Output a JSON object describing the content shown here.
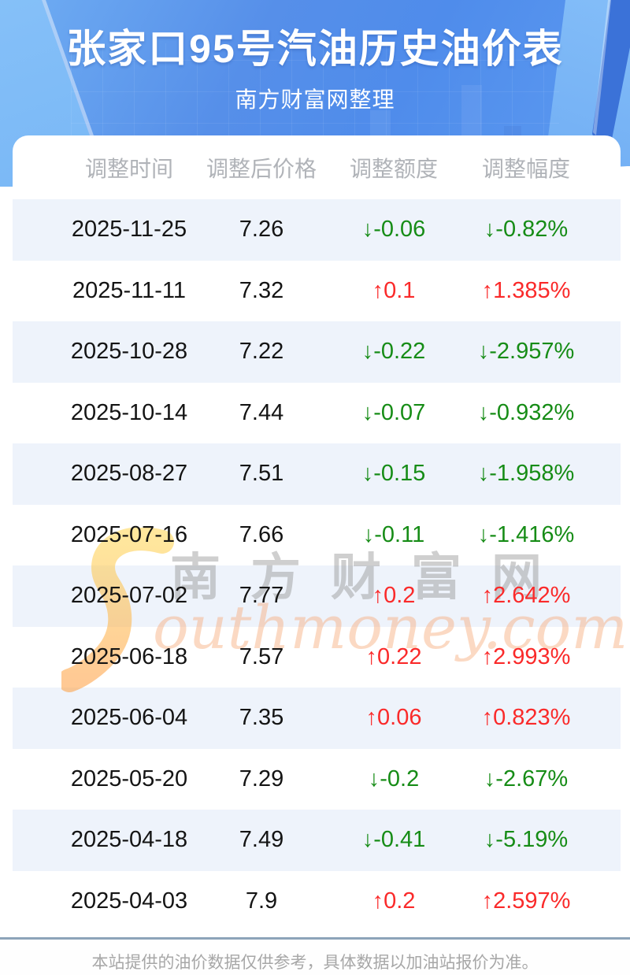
{
  "header": {
    "title": "张家口95号汽油历史油价表",
    "subtitle": "南方财富网整理"
  },
  "table": {
    "columns": [
      "调整时间",
      "调整后价格",
      "调整额度",
      "调整幅度"
    ],
    "arrows": {
      "up": "↑",
      "down": "↓"
    },
    "rows": [
      {
        "date": "2025-11-25",
        "price": "7.26",
        "change": "-0.06",
        "rate": "-0.82%",
        "trend": "down"
      },
      {
        "date": "2025-11-11",
        "price": "7.32",
        "change": "0.1",
        "rate": "1.385%",
        "trend": "up"
      },
      {
        "date": "2025-10-28",
        "price": "7.22",
        "change": "-0.22",
        "rate": "-2.957%",
        "trend": "down"
      },
      {
        "date": "2025-10-14",
        "price": "7.44",
        "change": "-0.07",
        "rate": "-0.932%",
        "trend": "down"
      },
      {
        "date": "2025-08-27",
        "price": "7.51",
        "change": "-0.15",
        "rate": "-1.958%",
        "trend": "down"
      },
      {
        "date": "2025-07-16",
        "price": "7.66",
        "change": "-0.11",
        "rate": "-1.416%",
        "trend": "down"
      },
      {
        "date": "2025-07-02",
        "price": "7.77",
        "change": "0.2",
        "rate": "2.642%",
        "trend": "up"
      },
      {
        "date": "2025-06-18",
        "price": "7.57",
        "change": "0.22",
        "rate": "2.993%",
        "trend": "up"
      },
      {
        "date": "2025-06-04",
        "price": "7.35",
        "change": "0.06",
        "rate": "0.823%",
        "trend": "up"
      },
      {
        "date": "2025-05-20",
        "price": "7.29",
        "change": "-0.2",
        "rate": "-2.67%",
        "trend": "down"
      },
      {
        "date": "2025-04-18",
        "price": "7.49",
        "change": "-0.41",
        "rate": "-5.19%",
        "trend": "down"
      },
      {
        "date": "2025-04-03",
        "price": "7.9",
        "change": "0.2",
        "rate": "2.597%",
        "trend": "up"
      }
    ]
  },
  "watermark": {
    "cn": "南方财富网",
    "en": "outhmoney.com"
  },
  "footer": {
    "note": "本站提供的油价数据仅供参考，具体数据以加油站报价为准。"
  },
  "colors": {
    "header_blue": "#5592e9",
    "header_light_blue": "#7db9f6",
    "header_dark_blue": "#3b72d8",
    "stripe": "#eef3fb",
    "up_red": "#fa2a2a",
    "down_green": "#168c16",
    "footer_rule": "#8da4b9",
    "muted_text": "#a7a7a7"
  },
  "chart_data": {
    "type": "table",
    "title": "张家口95号汽油历史油价表",
    "subtitle": "南方财富网整理",
    "columns": [
      "调整时间",
      "调整后价格",
      "调整额度",
      "调整幅度"
    ],
    "rows": [
      [
        "2025-11-25",
        7.26,
        -0.06,
        "-0.82%"
      ],
      [
        "2025-11-11",
        7.32,
        0.1,
        "1.385%"
      ],
      [
        "2025-10-28",
        7.22,
        -0.22,
        "-2.957%"
      ],
      [
        "2025-10-14",
        7.44,
        -0.07,
        "-0.932%"
      ],
      [
        "2025-08-27",
        7.51,
        -0.15,
        "-1.958%"
      ],
      [
        "2025-07-16",
        7.66,
        -0.11,
        "-1.416%"
      ],
      [
        "2025-07-02",
        7.77,
        0.2,
        "2.642%"
      ],
      [
        "2025-06-18",
        7.57,
        0.22,
        "2.993%"
      ],
      [
        "2025-06-04",
        7.35,
        0.06,
        "0.823%"
      ],
      [
        "2025-05-20",
        7.29,
        -0.2,
        "-2.67%"
      ],
      [
        "2025-04-18",
        7.49,
        -0.41,
        "-5.19%"
      ],
      [
        "2025-04-03",
        7.9,
        0.2,
        "2.597%"
      ]
    ]
  }
}
